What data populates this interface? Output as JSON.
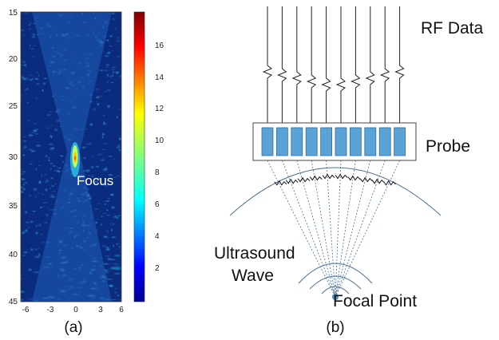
{
  "panel_a": {
    "caption": "(a)",
    "annotation": "Focus",
    "y_ticks": [
      "15",
      "20",
      "25",
      "30",
      "35",
      "40",
      "45"
    ],
    "x_ticks": [
      "-6",
      "-3",
      "0",
      "3",
      "6"
    ],
    "colorbar_ticks": [
      "16",
      "14",
      "12",
      "10",
      "8",
      "6",
      "4",
      "2"
    ],
    "colormap": "jet"
  },
  "panel_b": {
    "caption": "(b)",
    "rf_label": "RF Data",
    "probe_label": "Probe",
    "wave_label_line1": "Ultrasound",
    "wave_label_line2": "Wave",
    "focal_label": "Focal Point",
    "colors": {
      "element_fill": "#5aa3d6",
      "element_stroke": "#2f6f9f",
      "ray_color": "#4a6f98",
      "focal_dot": "#4a90c8"
    }
  }
}
